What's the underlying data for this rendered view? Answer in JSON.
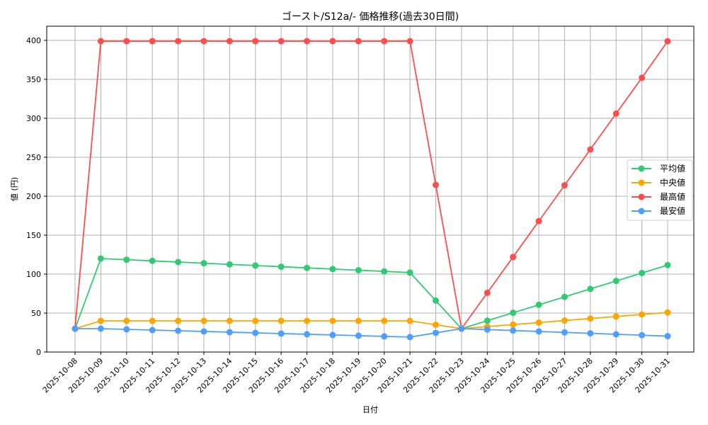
{
  "chart_data": {
    "type": "line",
    "title": "ゴースト/S12a/- 価格推移(過去30日間)",
    "xlabel": "日付",
    "ylabel": "値 (円)",
    "ylim": [
      0,
      418
    ],
    "yticks": [
      0,
      50,
      100,
      150,
      200,
      250,
      300,
      350,
      400
    ],
    "grid": true,
    "legend_position": "center right",
    "x": [
      "2025-10-08",
      "2025-10-09",
      "2025-10-10",
      "2025-10-11",
      "2025-10-12",
      "2025-10-13",
      "2025-10-14",
      "2025-10-15",
      "2025-10-16",
      "2025-10-17",
      "2025-10-18",
      "2025-10-19",
      "2025-10-20",
      "2025-10-21",
      "2025-10-22",
      "2025-10-23",
      "2025-10-24",
      "2025-10-25",
      "2025-10-26",
      "2025-10-27",
      "2025-10-28",
      "2025-10-29",
      "2025-10-30",
      "2025-10-31"
    ],
    "series": [
      {
        "name": "平均値",
        "color": "#2ecc71",
        "values": [
          30,
          120,
          118.5,
          117,
          115.5,
          114,
          112.5,
          111,
          109.5,
          108,
          106.5,
          105,
          103.5,
          102,
          66,
          30,
          40.2,
          50.4,
          60.6,
          70.8,
          81,
          91.2,
          101.4,
          111.6
        ]
      },
      {
        "name": "中央値",
        "color": "#ffa500",
        "values": [
          30,
          40,
          40,
          40,
          40,
          40,
          40,
          40,
          40,
          40,
          40,
          40,
          40,
          40,
          35,
          30,
          32.6,
          35.2,
          37.8,
          40.4,
          43,
          45.6,
          48.2,
          50.8
        ]
      },
      {
        "name": "最高値",
        "color": "#ff4d4d",
        "values": [
          30,
          399,
          399,
          399,
          399,
          399,
          399,
          399,
          399,
          399,
          399,
          399,
          399,
          399,
          214.5,
          30,
          76,
          122,
          168,
          214,
          260,
          306,
          352,
          398.9
        ]
      },
      {
        "name": "最安値",
        "color": "#4d9eff",
        "values": [
          30,
          30,
          29.1,
          28.2,
          27.3,
          26.4,
          25.5,
          24.6,
          23.7,
          22.8,
          21.9,
          21,
          20.1,
          19.2,
          24.6,
          30,
          28.8,
          27.6,
          26.4,
          25.2,
          24,
          22.8,
          21.6,
          20.4
        ]
      }
    ]
  }
}
